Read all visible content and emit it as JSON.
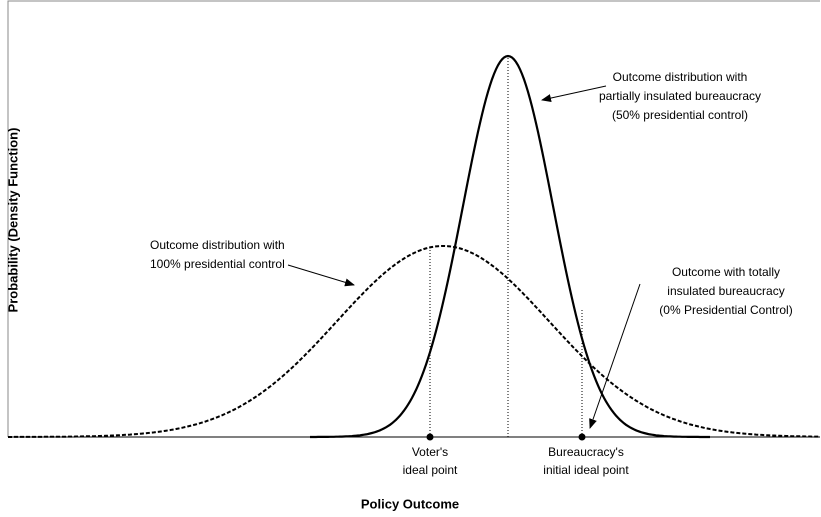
{
  "axes": {
    "y_label": "Probability (Density Function)",
    "x_label": "Policy Outcome"
  },
  "points": [
    {
      "lines": [
        "Voter's",
        "ideal point"
      ]
    },
    {
      "lines": [
        "Bureaucracy's",
        "initial ideal point"
      ]
    }
  ],
  "annotations": [
    {
      "lines": [
        "Outcome distribution with",
        "partially insulated bureaucracy",
        "(50% presidential control)"
      ]
    },
    {
      "lines": [
        "Outcome distribution with",
        "100% presidential control"
      ]
    },
    {
      "lines": [
        "Outcome with totally",
        "insulated bureaucracy",
        "(0% Presidential Control)"
      ]
    }
  ]
}
